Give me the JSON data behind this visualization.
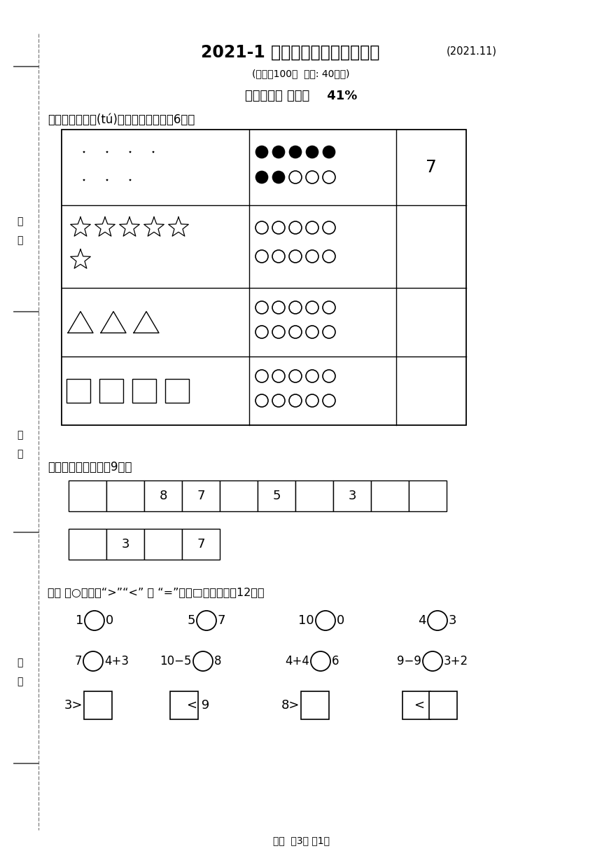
{
  "title_bold": "2021-1 一年级数学学业质量检测",
  "title_small": "(2021.11)",
  "subtitle": "(满分：100分  时间: 40分钟)",
  "part1_title": "第一部分： 我能行    41%",
  "q1_label": "一、数一数，涂(tú)一涂，填一填。（6分）",
  "q2_label": "二、找规律填数。（9分）",
  "q3_label": "三、 在○里填上“>”“<” 或 “=”，在□里填数。（12分）",
  "footer": "一数  关3页 第1页",
  "bg_color": "#ffffff",
  "line_color": "#000000",
  "dashed_line_color": "#aaaaaa"
}
